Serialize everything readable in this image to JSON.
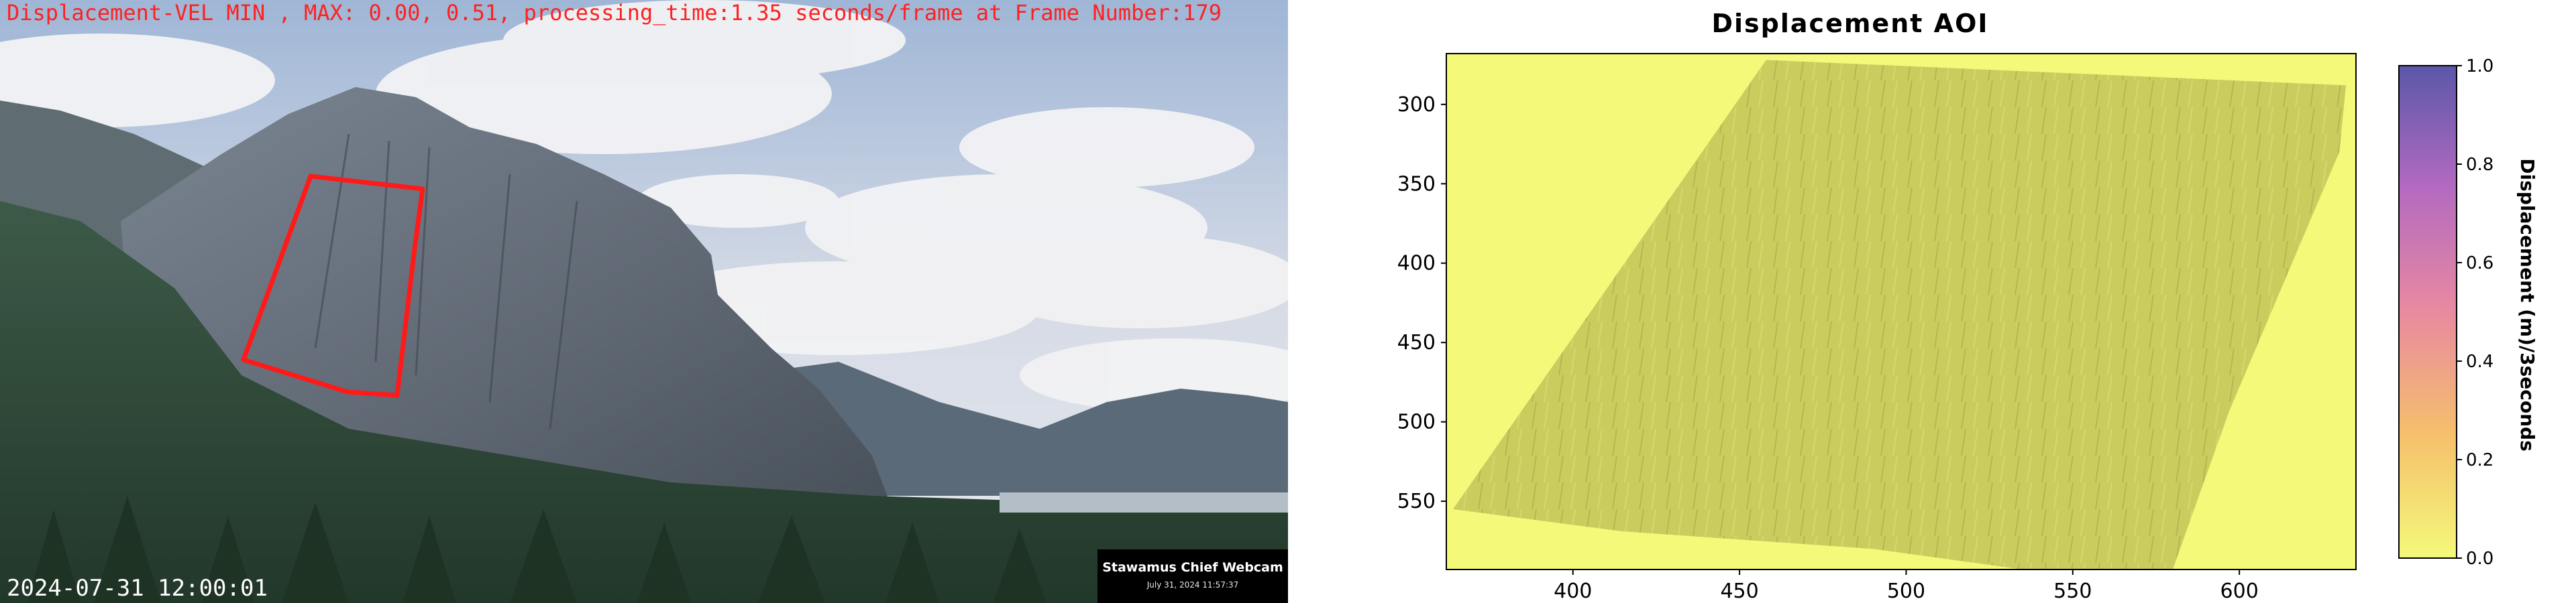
{
  "webcam": {
    "overlay_title": "Displacement-VEL MIN , MAX: 0.00, 0.51, processing_time:1.35 seconds/frame at Frame Number:179",
    "timestamp": "2024-07-31 12:00:01",
    "badge_name": "Stawamus Chief Webcam",
    "badge_date": "July 31, 2024 11:57:37",
    "aoi_outline_color": "#ff1a1a"
  },
  "chart_data": {
    "type": "heatmap",
    "title": "Displacement AOI",
    "xlabel": "",
    "ylabel": "",
    "xlim": [
      362,
      635
    ],
    "ylim": [
      593,
      268
    ],
    "x_ticks": [
      400,
      450,
      500,
      550,
      600
    ],
    "y_ticks": [
      300,
      350,
      400,
      450,
      500,
      550
    ],
    "colorbar": {
      "label": "Displacement (m)/3seconds",
      "range": [
        0.0,
        1.0
      ],
      "ticks": [
        0.0,
        0.2,
        0.4,
        0.6,
        0.8,
        1.0
      ],
      "colormap": [
        "#f4f97a",
        "#f6c06c",
        "#e88aa0",
        "#b46ac0",
        "#5b57a8"
      ]
    },
    "aoi_displacement_values": {
      "min": 0.0,
      "max": 0.51
    },
    "background_value": 0.0,
    "aoi_polygon": [
      [
        364,
        555
      ],
      [
        458,
        272
      ],
      [
        632,
        288
      ],
      [
        630,
        330
      ],
      [
        597,
        493
      ],
      [
        580,
        593
      ],
      [
        535,
        593
      ],
      [
        490,
        580
      ],
      [
        415,
        569
      ]
    ]
  }
}
